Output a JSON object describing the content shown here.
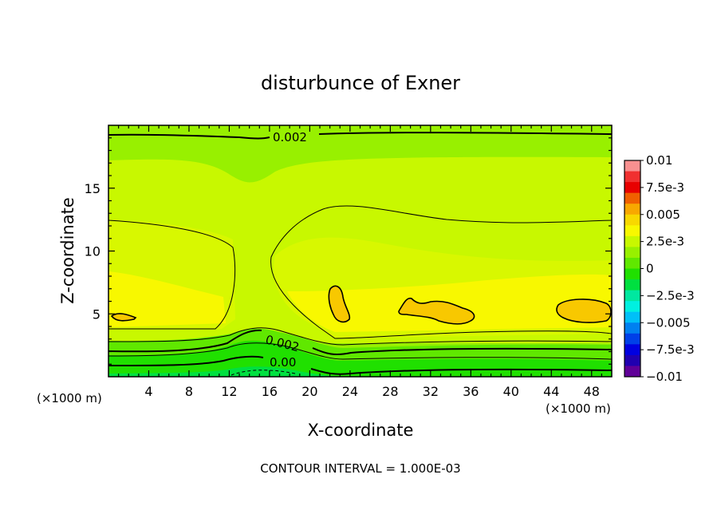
{
  "chart_data": {
    "type": "heatmap",
    "title": "disturbunce of Exner",
    "xlabel": "X-coordinate",
    "ylabel": "Z-coordinate",
    "x_unit_label": "(×1000 m)",
    "x_unit_label_right": "(×1000 m)",
    "x_range": [
      0,
      50
    ],
    "y_range": [
      0,
      20
    ],
    "x_ticks": [
      4,
      8,
      12,
      16,
      20,
      24,
      28,
      32,
      36,
      40,
      44,
      48
    ],
    "y_ticks": [
      5,
      10,
      15
    ],
    "contour_interval_text": "CONTOUR INTERVAL = 1.000E-03",
    "colorbar": {
      "labels": [
        "0.01",
        "7.5e-3",
        "0.005",
        "2.5e-3",
        "0",
        "−2.5e-3",
        "−0.005",
        "−7.5e-3",
        "−0.01"
      ],
      "range": [
        -0.01,
        0.01
      ],
      "colors": [
        "#f89090",
        "#f03030",
        "#e80000",
        "#f06000",
        "#f8a800",
        "#f8d800",
        "#f8f800",
        "#c8f800",
        "#98f000",
        "#60e800",
        "#20e000",
        "#00e040",
        "#00e8a0",
        "#00f0e0",
        "#00c0f8",
        "#0080f0",
        "#0040e8",
        "#0000e0",
        "#2000b0",
        "#600098"
      ]
    },
    "contour_labels": [
      {
        "text": "0.002",
        "x": 16.6,
        "y": 19.0
      },
      {
        "text": "0.002",
        "x": 17.8,
        "y": 3.2
      },
      {
        "text": "0.00",
        "x": 17.5,
        "y": 1.0
      }
    ],
    "field_description": "perturbation Exner pressure; max ~0.005 at z~5, minimum ~0 near surface"
  },
  "colors": {
    "band_0_001": "#20e000",
    "band_0_0015": "#60e800",
    "band_0_002": "#98f000",
    "band_0_0025": "#c8f800",
    "band_0_003": "#d8f800",
    "band_0_004": "#f8f800",
    "band_0_005": "#f8c800",
    "band_0_0": "#00e040"
  }
}
